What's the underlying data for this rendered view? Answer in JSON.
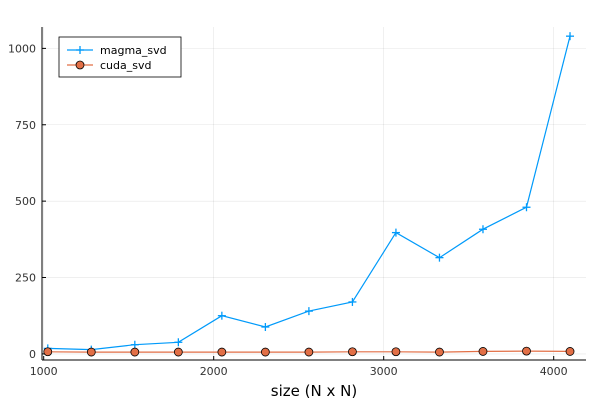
{
  "chart_data": {
    "type": "line",
    "title": "",
    "xlabel": "size (N x N)",
    "ylabel": "",
    "xlim": [
      990,
      4190
    ],
    "ylim": [
      -20,
      1070
    ],
    "xticks": [
      1000,
      2000,
      3000,
      4000
    ],
    "yticks": [
      0,
      250,
      500,
      750,
      1000
    ],
    "grid": true,
    "legend_position": "top-left",
    "series": [
      {
        "name": "magma_svd",
        "color": "#009AFA",
        "marker": "cross",
        "x": [
          1024,
          1280,
          1536,
          1792,
          2048,
          2304,
          2560,
          2816,
          3072,
          3328,
          3584,
          3840,
          4096
        ],
        "y": [
          18,
          14,
          30,
          38,
          125,
          88,
          140,
          170,
          397,
          315,
          408,
          480,
          1040
        ]
      },
      {
        "name": "cuda_svd",
        "color": "#E26F46",
        "marker": "circle",
        "x": [
          1024,
          1280,
          1536,
          1792,
          2048,
          2304,
          2560,
          2816,
          3072,
          3328,
          3584,
          3840,
          4096
        ],
        "y": [
          7,
          6,
          6,
          6,
          6,
          6,
          6,
          7,
          7,
          6,
          8,
          9,
          8
        ]
      }
    ]
  }
}
